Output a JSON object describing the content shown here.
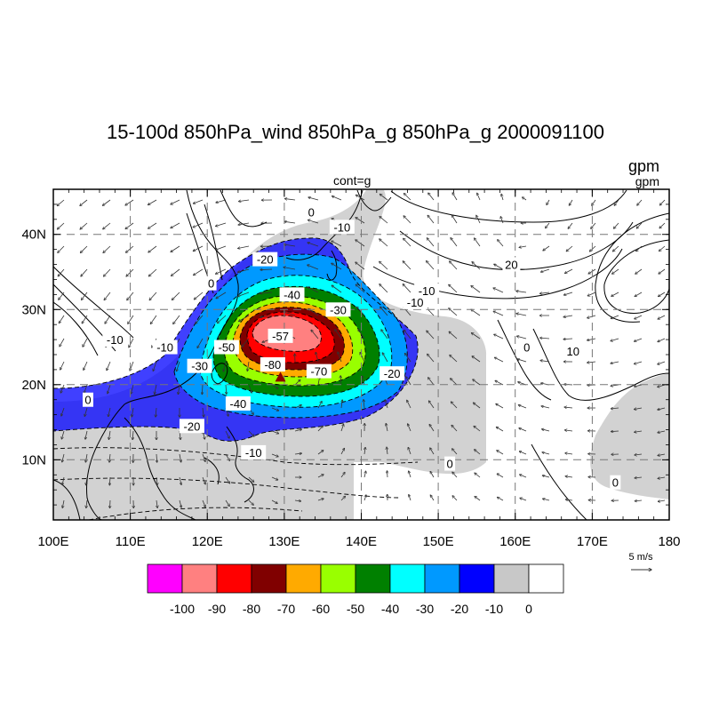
{
  "figure": {
    "title": "15-100d 850hPa_wind 850hPa_g 850hPa_g 2000091100",
    "left_unit": "g",
    "cont_label": "cont=g",
    "right_unit_top": "gpm",
    "right_unit_bottom": "gpm"
  },
  "map": {
    "lon_range": [
      100,
      180
    ],
    "lat_range": [
      2,
      46
    ],
    "lon_ticks": [
      "100E",
      "110E",
      "120E",
      "130E",
      "140E",
      "150E",
      "160E",
      "170E",
      "180"
    ],
    "lon_tick_values": [
      100,
      110,
      120,
      130,
      140,
      150,
      160,
      170,
      180
    ],
    "lat_ticks": [
      "10N",
      "20N",
      "30N",
      "40N"
    ],
    "lat_tick_values": [
      10,
      20,
      30,
      40
    ],
    "grid": true,
    "center_marker_lonlat": [
      129.5,
      21.0
    ]
  },
  "contour_labels": [
    {
      "text": "0",
      "lon": 133.5,
      "lat": 43.0
    },
    {
      "text": "-10",
      "lon": 137.5,
      "lat": 41.0
    },
    {
      "text": "-20",
      "lon": 127.5,
      "lat": 36.7
    },
    {
      "text": "0",
      "lon": 120.5,
      "lat": 33.5
    },
    {
      "text": "-40",
      "lon": 131.0,
      "lat": 32.0
    },
    {
      "text": "-30",
      "lon": 137.0,
      "lat": 30.0
    },
    {
      "text": "-10",
      "lon": 147.0,
      "lat": 31.0
    },
    {
      "text": "-50",
      "lon": 122.5,
      "lat": 25.0
    },
    {
      "text": "-10",
      "lon": 114.5,
      "lat": 25.0
    },
    {
      "text": "-10",
      "lon": 108.0,
      "lat": 26.0
    },
    {
      "text": "-30",
      "lon": 119.0,
      "lat": 22.5
    },
    {
      "text": "-57",
      "lon": 129.5,
      "lat": 26.5
    },
    {
      "text": "-80",
      "lon": 128.5,
      "lat": 22.7
    },
    {
      "text": "-70",
      "lon": 134.5,
      "lat": 21.8
    },
    {
      "text": "-20",
      "lon": 144.0,
      "lat": 21.5
    },
    {
      "text": "-40",
      "lon": 124.0,
      "lat": 17.5
    },
    {
      "text": "-20",
      "lon": 118.0,
      "lat": 14.5
    },
    {
      "text": "0",
      "lon": 104.5,
      "lat": 18.0
    },
    {
      "text": "-10",
      "lon": 126.0,
      "lat": 11.0
    },
    {
      "text": "0",
      "lon": 151.5,
      "lat": 9.5
    },
    {
      "text": "-10",
      "lon": 148.5,
      "lat": 32.5
    },
    {
      "text": "20",
      "lon": 159.5,
      "lat": 36.0
    },
    {
      "text": "0",
      "lon": 161.5,
      "lat": 25.0
    },
    {
      "text": "10",
      "lon": 167.5,
      "lat": 24.5
    },
    {
      "text": "0",
      "lon": 173.0,
      "lat": 7.0
    }
  ],
  "shaded_levels": [
    {
      "label": "-100",
      "color": "#ff00ff"
    },
    {
      "label": "-90",
      "color": "#ff8080"
    },
    {
      "label": "-80",
      "color": "#ff0000"
    },
    {
      "label": "-70",
      "color": "#800000"
    },
    {
      "label": "-60",
      "color": "#ffaa00"
    },
    {
      "label": "-50",
      "color": "#99ff00"
    },
    {
      "label": "-40",
      "color": "#008000"
    },
    {
      "label": "-30",
      "color": "#00ffff"
    },
    {
      "label": "-20",
      "color": "#0099ff"
    },
    {
      "label": "-10",
      "color": "#0000ff"
    },
    {
      "label": "0",
      "color": "#c8c8c8"
    },
    {
      "label": "",
      "color": "#ffffff"
    }
  ],
  "vector_reference": {
    "label": "5 m/s"
  }
}
